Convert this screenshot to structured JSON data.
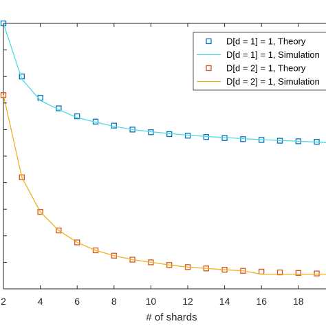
{
  "chart_data": {
    "type": "line",
    "xlabel": "# of shards",
    "ylabel": "",
    "xlim": [
      2,
      19.5
    ],
    "ylim": [
      0.0,
      1.0
    ],
    "xticks": [
      2,
      4,
      6,
      8,
      10,
      12,
      14,
      16,
      18
    ],
    "grid": false,
    "legend_position": "top-right",
    "series": [
      {
        "name": "D[d = 1] = 1, Theory",
        "style": "markers",
        "marker": "square",
        "color": "#0072BD",
        "x": [
          2,
          3,
          4,
          5,
          6,
          7,
          8,
          9,
          10,
          11,
          12,
          13,
          14,
          15,
          16,
          17,
          18,
          19
        ],
        "y": [
          1.0,
          0.8,
          0.72,
          0.68,
          0.65,
          0.63,
          0.615,
          0.6,
          0.59,
          0.583,
          0.577,
          0.572,
          0.568,
          0.564,
          0.561,
          0.558,
          0.556,
          0.554
        ]
      },
      {
        "name": "D[d = 1] = 1, Simulation",
        "style": "line",
        "color": "#4DD9E8",
        "x": [
          2,
          3,
          4,
          5,
          6,
          7,
          8,
          9,
          10,
          11,
          12,
          13,
          14,
          15,
          16,
          17,
          18,
          19,
          19.5
        ],
        "y": [
          1.0,
          0.79,
          0.71,
          0.675,
          0.645,
          0.628,
          0.612,
          0.6,
          0.592,
          0.585,
          0.579,
          0.574,
          0.57,
          0.566,
          0.562,
          0.559,
          0.556,
          0.553,
          0.551
        ]
      },
      {
        "name": "D[d = 2] = 1, Theory",
        "style": "markers",
        "marker": "square",
        "color": "#D95319",
        "x": [
          2,
          3,
          4,
          5,
          6,
          7,
          8,
          9,
          10,
          11,
          12,
          13,
          14,
          15,
          16,
          17,
          18,
          19
        ],
        "y": [
          0.73,
          0.42,
          0.29,
          0.22,
          0.175,
          0.145,
          0.125,
          0.11,
          0.1,
          0.09,
          0.082,
          0.077,
          0.072,
          0.068,
          0.065,
          0.062,
          0.06,
          0.058
        ]
      },
      {
        "name": "D[d = 2] = 1, Simulation",
        "style": "line",
        "color": "#EDB120",
        "x": [
          2,
          3,
          4,
          5,
          6,
          7,
          8,
          9,
          10,
          11,
          12,
          13,
          14,
          15,
          16,
          17,
          18,
          19,
          19.5
        ],
        "y": [
          0.73,
          0.42,
          0.29,
          0.22,
          0.175,
          0.145,
          0.125,
          0.11,
          0.1,
          0.09,
          0.082,
          0.077,
          0.072,
          0.068,
          0.055,
          0.055,
          0.055,
          0.055,
          0.055
        ]
      }
    ]
  }
}
